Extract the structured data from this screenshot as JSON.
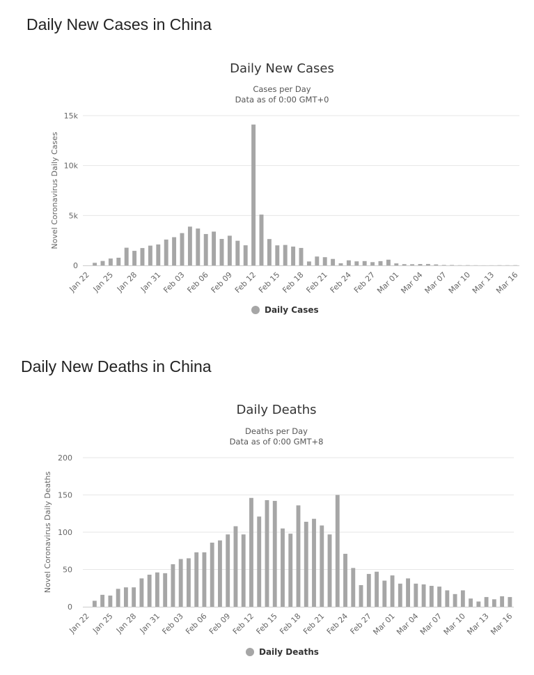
{
  "sections": [
    {
      "heading": "Daily New Cases in China"
    },
    {
      "heading": "Daily New Deaths in China"
    }
  ],
  "chart_data": [
    {
      "type": "bar",
      "title": "Daily New Cases",
      "subtitle_lines": [
        "Cases per Day",
        "Data as of 0:00 GMT+0"
      ],
      "ylabel": "Novel Coronavirus Daily Cases",
      "xlabel": "",
      "ylim": [
        0,
        15000
      ],
      "yticks": [
        0,
        5000,
        10000,
        15000
      ],
      "ytick_labels": [
        "0",
        "5k",
        "10k",
        "15k"
      ],
      "grid": true,
      "legend": {
        "label": "Daily Cases",
        "position": "bottom-center"
      },
      "bar_color": "#a6a6a6",
      "categories": [
        "Jan 22",
        "Jan 23",
        "Jan 24",
        "Jan 25",
        "Jan 26",
        "Jan 27",
        "Jan 28",
        "Jan 29",
        "Jan 30",
        "Jan 31",
        "Feb 01",
        "Feb 02",
        "Feb 03",
        "Feb 04",
        "Feb 05",
        "Feb 06",
        "Feb 07",
        "Feb 08",
        "Feb 09",
        "Feb 10",
        "Feb 11",
        "Feb 12",
        "Feb 13",
        "Feb 14",
        "Feb 15",
        "Feb 16",
        "Feb 17",
        "Feb 18",
        "Feb 19",
        "Feb 20",
        "Feb 21",
        "Feb 22",
        "Feb 23",
        "Feb 24",
        "Feb 25",
        "Feb 26",
        "Feb 27",
        "Feb 28",
        "Feb 29",
        "Mar 01",
        "Mar 02",
        "Mar 03",
        "Mar 04",
        "Mar 05",
        "Mar 06",
        "Mar 07",
        "Mar 08",
        "Mar 09",
        "Mar 10",
        "Mar 11",
        "Mar 12",
        "Mar 13",
        "Mar 14",
        "Mar 15",
        "Mar 16"
      ],
      "tick_labels": [
        "Jan 22",
        "Jan 25",
        "Jan 28",
        "Jan 31",
        "Feb 03",
        "Feb 06",
        "Feb 09",
        "Feb 12",
        "Feb 15",
        "Feb 18",
        "Feb 21",
        "Feb 24",
        "Feb 27",
        "Mar 01",
        "Mar 04",
        "Mar 07",
        "Mar 10",
        "Mar 13",
        "Mar 16"
      ],
      "values": [
        0,
        259,
        444,
        688,
        769,
        1771,
        1459,
        1737,
        1981,
        2099,
        2589,
        2825,
        3235,
        3884,
        3694,
        3143,
        3385,
        2652,
        2973,
        2467,
        2015,
        14108,
        5090,
        2641,
        2008,
        2048,
        1886,
        1749,
        394,
        889,
        823,
        648,
        214,
        508,
        406,
        433,
        327,
        427,
        573,
        202,
        125,
        119,
        139,
        143,
        99,
        44,
        40,
        19,
        24,
        15,
        8,
        11,
        20,
        16,
        21
      ]
    },
    {
      "type": "bar",
      "title": "Daily Deaths",
      "subtitle_lines": [
        "Deaths per Day",
        "Data as of 0:00 GMT+8"
      ],
      "ylabel": "Novel Coronavirus Daily Deaths",
      "xlabel": "",
      "ylim": [
        0,
        200
      ],
      "yticks": [
        0,
        50,
        100,
        150,
        200
      ],
      "ytick_labels": [
        "0",
        "50",
        "100",
        "150",
        "200"
      ],
      "grid": true,
      "legend": {
        "label": "Daily Deaths",
        "position": "bottom-center"
      },
      "bar_color": "#a6a6a6",
      "categories": [
        "Jan 22",
        "Jan 23",
        "Jan 24",
        "Jan 25",
        "Jan 26",
        "Jan 27",
        "Jan 28",
        "Jan 29",
        "Jan 30",
        "Jan 31",
        "Feb 01",
        "Feb 02",
        "Feb 03",
        "Feb 04",
        "Feb 05",
        "Feb 06",
        "Feb 07",
        "Feb 08",
        "Feb 09",
        "Feb 10",
        "Feb 11",
        "Feb 12",
        "Feb 13",
        "Feb 14",
        "Feb 15",
        "Feb 16",
        "Feb 17",
        "Feb 18",
        "Feb 19",
        "Feb 20",
        "Feb 21",
        "Feb 22",
        "Feb 23",
        "Feb 24",
        "Feb 25",
        "Feb 26",
        "Feb 27",
        "Feb 28",
        "Feb 29",
        "Mar 01",
        "Mar 02",
        "Mar 03",
        "Mar 04",
        "Mar 05",
        "Mar 06",
        "Mar 07",
        "Mar 08",
        "Mar 09",
        "Mar 10",
        "Mar 11",
        "Mar 12",
        "Mar 13",
        "Mar 14",
        "Mar 15",
        "Mar 16"
      ],
      "tick_labels": [
        "Jan 22",
        "Jan 25",
        "Jan 28",
        "Jan 31",
        "Feb 03",
        "Feb 06",
        "Feb 09",
        "Feb 12",
        "Feb 15",
        "Feb 18",
        "Feb 21",
        "Feb 24",
        "Feb 27",
        "Mar 01",
        "Mar 04",
        "Mar 07",
        "Mar 10",
        "Mar 13",
        "Mar 16"
      ],
      "values": [
        0,
        8,
        16,
        15,
        24,
        26,
        26,
        38,
        43,
        46,
        45,
        57,
        64,
        65,
        73,
        73,
        86,
        89,
        97,
        108,
        97,
        146,
        121,
        143,
        142,
        105,
        98,
        136,
        114,
        118,
        109,
        97,
        150,
        71,
        52,
        29,
        44,
        47,
        35,
        42,
        31,
        38,
        31,
        30,
        28,
        27,
        22,
        17,
        22,
        11,
        7,
        13,
        10,
        14,
        13
      ]
    }
  ]
}
